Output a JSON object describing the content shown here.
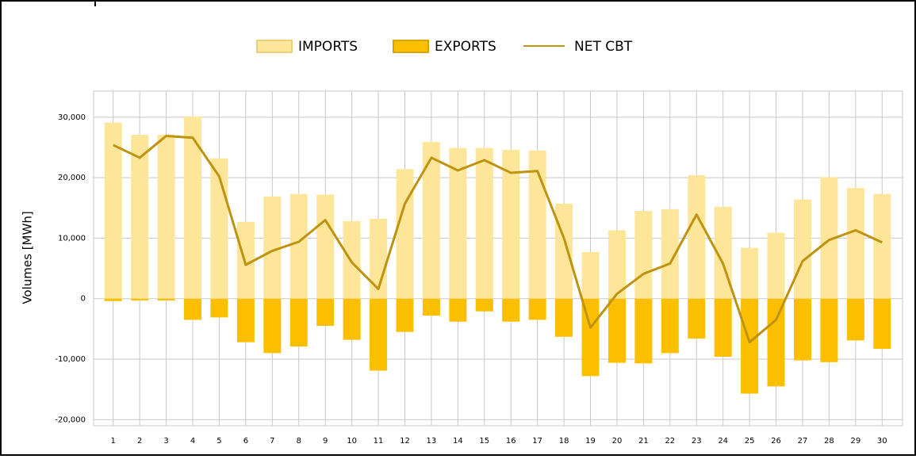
{
  "chart_data": {
    "type": "bar-line",
    "y_label": "Volumes [MWh]",
    "categories": [
      "1",
      "2",
      "3",
      "4",
      "5",
      "6",
      "7",
      "8",
      "9",
      "10",
      "11",
      "12",
      "13",
      "14",
      "15",
      "16",
      "17",
      "18",
      "19",
      "20",
      "21",
      "22",
      "23",
      "24",
      "25",
      "26",
      "27",
      "28",
      "29",
      "30"
    ],
    "series": [
      {
        "name": "IMPORTS",
        "type": "bar",
        "color": "#fde59a",
        "border": "#e8cf7c",
        "values": [
          29100,
          27100,
          27100,
          30100,
          23200,
          12700,
          16900,
          17300,
          17200,
          12800,
          13200,
          21400,
          25900,
          24900,
          24900,
          24600,
          24500,
          15700,
          7700,
          11300,
          14500,
          14800,
          20400,
          15200,
          8400,
          10900,
          16400,
          20100,
          18300,
          17300
        ]
      },
      {
        "name": "EXPORTS",
        "type": "bar",
        "color": "#fbbf00",
        "border": "#d9a300",
        "values": [
          -400,
          -300,
          -300,
          -3500,
          -3100,
          -7200,
          -9000,
          -7900,
          -4500,
          -6800,
          -11900,
          -5500,
          -2800,
          -3800,
          -2100,
          -3800,
          -3500,
          -6300,
          -12800,
          -10600,
          -10700,
          -9000,
          -6600,
          -9600,
          -15700,
          -14500,
          -10200,
          -10500,
          -6900,
          -8300
        ]
      },
      {
        "name": "NET CBT",
        "type": "line",
        "color": "#bf920f",
        "values": [
          25400,
          23300,
          26900,
          26600,
          20200,
          5600,
          7900,
          9400,
          13000,
          6000,
          1600,
          15700,
          23300,
          21200,
          22900,
          20800,
          21100,
          10000,
          -4800,
          800,
          4100,
          5800,
          13900,
          5800,
          -7200,
          -3500,
          6200,
          9700,
          11300,
          9300
        ]
      }
    ],
    "ylim": [
      -21000,
      34300
    ],
    "yticks": [
      {
        "value": -20000,
        "label": "-20,000"
      },
      {
        "value": -10000,
        "label": "-10,000"
      },
      0,
      {
        "value": 10000,
        "label": "10,000"
      },
      {
        "value": 20000,
        "label": "20,000"
      },
      {
        "value": 30000,
        "label": "30,000"
      }
    ],
    "grid": true
  }
}
